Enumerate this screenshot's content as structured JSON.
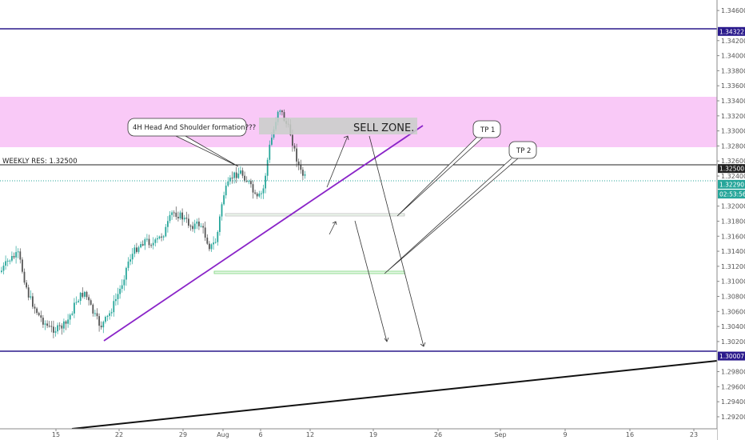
{
  "chart_data": {
    "type": "candlestick",
    "title": "",
    "xlabel": "",
    "ylabel": "",
    "ylim": [
      1.2904,
      1.3474
    ],
    "y_ticks": [
      "1.34600",
      "1.34200",
      "1.34000",
      "1.33800",
      "1.33600",
      "1.33400",
      "1.33200",
      "1.33000",
      "1.32800",
      "1.32600",
      "1.32400",
      "1.32000",
      "1.31800",
      "1.31600",
      "1.31400",
      "1.31200",
      "1.31000",
      "1.30800",
      "1.30600",
      "1.30400",
      "1.30200",
      "1.29800",
      "1.29600",
      "1.29400",
      "1.29200"
    ],
    "x_ticks": [
      "15",
      "22",
      "29",
      "Aug",
      "6",
      "12",
      "19",
      "26",
      "Sep",
      "9",
      "16",
      "23"
    ],
    "price_labels": [
      {
        "text": "1.34322",
        "value": 1.34322,
        "color": "#2a1a8c"
      },
      {
        "text": "1.32500",
        "value": 1.325,
        "color": "#222222"
      },
      {
        "text": "1.32290",
        "value": 1.3229,
        "color": "#26a69a"
      },
      {
        "text": "02:53:56",
        "value": 1.3216,
        "color": "#26a69a"
      },
      {
        "text": "1.30007",
        "value": 1.30007,
        "color": "#2a1a8c"
      }
    ],
    "horizontal_lines": [
      {
        "name": "resistance",
        "value": 1.34322,
        "color": "#2a1a8c"
      },
      {
        "name": "weekly-res",
        "value": 1.325,
        "color": "#222222"
      },
      {
        "name": "support",
        "value": 1.30007,
        "color": "#2a1a8c"
      }
    ],
    "zone": {
      "from": 1.3275,
      "to": 1.3343,
      "color": "#f9c9f7"
    },
    "last_price": 1.3229,
    "annotations": {
      "weekly_res": "WEEKLY RES: 1.32500",
      "hs": "4H Head And Shoulder formation???",
      "sell_zone": "SELL ZONE.",
      "tp1": "TP 1",
      "tp2": "TP 2"
    },
    "colors": {
      "up": "#26a69a",
      "down": "#555555",
      "trendline": "#8a24c8",
      "tp_box": "#7ed67e"
    }
  }
}
